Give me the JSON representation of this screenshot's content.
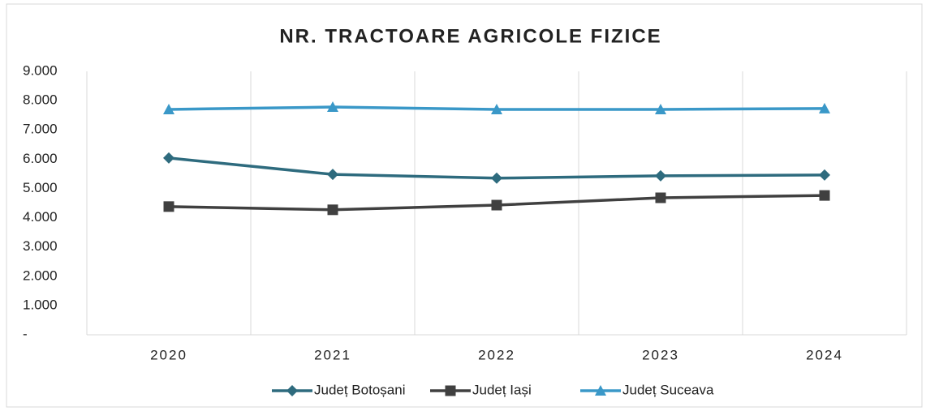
{
  "chart_data": {
    "type": "line",
    "title": "NR. TRACTOARE AGRICOLE FIZICE",
    "categories": [
      "2020",
      "2021",
      "2022",
      "2023",
      "2024"
    ],
    "series": [
      {
        "name": "Județ Botoșani",
        "color": "#2e6b7e",
        "marker": "diamond",
        "values": [
          6040,
          5480,
          5350,
          5430,
          5460
        ]
      },
      {
        "name": "Județ Iași",
        "color": "#404040",
        "marker": "square",
        "values": [
          4380,
          4270,
          4430,
          4680,
          4760
        ]
      },
      {
        "name": "Județ Suceava",
        "color": "#3a98c8",
        "marker": "triangle",
        "values": [
          7700,
          7780,
          7700,
          7700,
          7730
        ]
      }
    ],
    "ylim": [
      0,
      9000
    ],
    "yticks": [
      {
        "value": 0,
        "label": "-"
      },
      {
        "value": 1000,
        "label": "1.000"
      },
      {
        "value": 2000,
        "label": "2.000"
      },
      {
        "value": 3000,
        "label": "3.000"
      },
      {
        "value": 4000,
        "label": "4.000"
      },
      {
        "value": 5000,
        "label": "5.000"
      },
      {
        "value": 6000,
        "label": "6.000"
      },
      {
        "value": 7000,
        "label": "7.000"
      },
      {
        "value": 8000,
        "label": "8.000"
      },
      {
        "value": 9000,
        "label": "9.000"
      }
    ],
    "legend": "bottom"
  }
}
